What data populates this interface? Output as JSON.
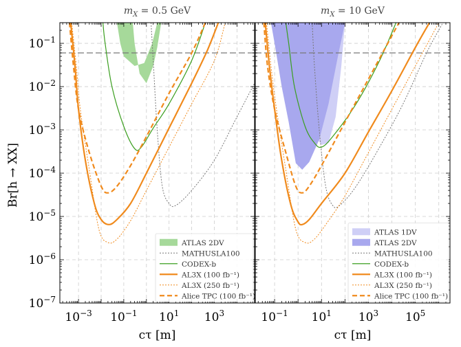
{
  "chart_data": [
    {
      "type": "line",
      "title": "m_X = 0.5 GeV",
      "title_parts": [
        "m",
        "X",
        " = 0.5 GeV"
      ],
      "xlabel": "cτ [m]",
      "ylabel": "Br[h → XX]",
      "x_scale": "log",
      "y_scale": "log",
      "xlim": [
        0.00015,
        60000
      ],
      "ylim": [
        1e-07,
        0.3
      ],
      "x_ticks": [
        {
          "value": 0.001,
          "base": "10",
          "exp": "−3"
        },
        {
          "value": 0.1,
          "base": "10",
          "exp": "−1"
        },
        {
          "value": 10,
          "base": "10",
          "exp": "1"
        },
        {
          "value": 1000,
          "base": "10",
          "exp": "3"
        }
      ],
      "y_ticks": [
        {
          "value": 1e-07,
          "base": "10",
          "exp": "−7"
        },
        {
          "value": 1e-06,
          "base": "10",
          "exp": "−6"
        },
        {
          "value": 1e-05,
          "base": "10",
          "exp": "−5"
        },
        {
          "value": 0.0001,
          "base": "10",
          "exp": "−4"
        },
        {
          "value": 0.001,
          "base": "10",
          "exp": "−3"
        },
        {
          "value": 0.01,
          "base": "10",
          "exp": "−2"
        },
        {
          "value": 0.1,
          "base": "10",
          "exp": "−1"
        }
      ],
      "grid": true,
      "reference_line": {
        "y": 0.06,
        "style": "dashed",
        "color": "#777777"
      },
      "legend_position": "lower-right",
      "bands": [
        {
          "name": "ATLAS 2DV",
          "color": "#a6d99a",
          "lower": [
            [
              0.25,
              0.3
            ],
            [
              0.3,
              0.1
            ],
            [
              0.5,
              0.02
            ],
            [
              1.0,
              0.012
            ],
            [
              2.0,
              0.03
            ],
            [
              3.0,
              0.08
            ],
            [
              4.5,
              0.3
            ]
          ],
          "upper": [
            [
              0.05,
              0.3
            ],
            [
              0.07,
              0.1
            ],
            [
              0.1,
              0.05
            ],
            [
              0.3,
              0.03
            ],
            [
              0.8,
              0.035
            ],
            [
              1.8,
              0.1
            ],
            [
              3.0,
              0.3
            ]
          ]
        }
      ],
      "series": [
        {
          "name": "MATHUSLA100",
          "color": "#777777",
          "style": "dotted",
          "width": 1.0,
          "points": [
            [
              1.6,
              0.3
            ],
            [
              2.0,
              0.04
            ],
            [
              3.0,
              0.001
            ],
            [
              5.0,
              5e-05
            ],
            [
              10,
              2e-05
            ],
            [
              20,
              1.8e-05
            ],
            [
              100,
              4e-05
            ],
            [
              1000,
              0.0002
            ],
            [
              10000,
              0.002
            ],
            [
              60000,
              0.012
            ]
          ]
        },
        {
          "name": "CODEX-b",
          "color": "#3a9e1e",
          "style": "solid",
          "width": 1.2,
          "points": [
            [
              0.012,
              0.3
            ],
            [
              0.015,
              0.1
            ],
            [
              0.03,
              0.01
            ],
            [
              0.1,
              0.0012
            ],
            [
              0.3,
              0.00037
            ],
            [
              0.6,
              0.0004
            ],
            [
              2,
              0.0011
            ],
            [
              10,
              0.004
            ],
            [
              100,
              0.04
            ],
            [
              400,
              0.3
            ]
          ]
        },
        {
          "name": "AL3X (100 fb⁻¹)",
          "color": "#f08a1c",
          "style": "solid",
          "width": 2.2,
          "points": [
            [
              0.00045,
              0.3
            ],
            [
              0.0007,
              0.03
            ],
            [
              0.001,
              0.003
            ],
            [
              0.002,
              0.0002
            ],
            [
              0.005,
              2e-05
            ],
            [
              0.01,
              8.5e-06
            ],
            [
              0.022,
              6.5e-06
            ],
            [
              0.05,
              8.5e-06
            ],
            [
              0.2,
              2e-05
            ],
            [
              1,
              0.0001
            ],
            [
              10,
              0.0011
            ],
            [
              100,
              0.012
            ],
            [
              500,
              0.07
            ],
            [
              1500,
              0.3
            ]
          ]
        },
        {
          "name": "AL3X (250 fb⁻¹)",
          "color": "#f08a1c",
          "style": "dotted",
          "width": 1.0,
          "points": [
            [
              0.0005,
              0.3
            ],
            [
              0.0008,
              0.03
            ],
            [
              0.0012,
              0.003
            ],
            [
              0.003,
              0.00012
            ],
            [
              0.008,
              5e-06
            ],
            [
              0.02,
              2.5e-06
            ],
            [
              0.05,
              3e-06
            ],
            [
              0.2,
              8e-06
            ],
            [
              1,
              4e-05
            ],
            [
              10,
              0.0004
            ],
            [
              100,
              0.004
            ],
            [
              1000,
              0.04
            ],
            [
              3000,
              0.3
            ]
          ]
        },
        {
          "name": "Alice TPC (100 fb⁻¹)",
          "color": "#f08a1c",
          "style": "dashed",
          "width": 2.2,
          "points": [
            [
              0.0004,
              0.3
            ],
            [
              0.0006,
              0.03
            ],
            [
              0.001,
              0.003
            ],
            [
              0.003,
              0.0003
            ],
            [
              0.01,
              5e-05
            ],
            [
              0.02,
              3.5e-05
            ],
            [
              0.05,
              5e-05
            ],
            [
              0.2,
              0.00015
            ],
            [
              1,
              0.0007
            ],
            [
              10,
              0.007
            ],
            [
              100,
              0.06
            ],
            [
              400,
              0.3
            ]
          ]
        }
      ],
      "legend": [
        {
          "label": "ATLAS 2DV",
          "kind": "band",
          "color": "#a6d99a"
        },
        {
          "label": "MATHUSLA100",
          "kind": "line",
          "color": "#777777",
          "style": "dotted",
          "width": 1.0
        },
        {
          "label": "CODEX-b",
          "kind": "line",
          "color": "#3a9e1e",
          "style": "solid",
          "width": 1.2
        },
        {
          "label": "AL3X (100 fb⁻¹)",
          "kind": "line",
          "color": "#f08a1c",
          "style": "solid",
          "width": 2.2
        },
        {
          "label": "AL3X (250 fb⁻¹)",
          "kind": "line",
          "color": "#f08a1c",
          "style": "dotted",
          "width": 1.0
        },
        {
          "label": "Alice TPC (100 fb⁻¹)",
          "kind": "line",
          "color": "#f08a1c",
          "style": "dashed",
          "width": 2.2
        }
      ]
    },
    {
      "type": "line",
      "title": "m_X = 10 GeV",
      "title_parts": [
        "m",
        "X",
        " = 10 GeV"
      ],
      "xlabel": "cτ [m]",
      "ylabel": "",
      "x_scale": "log",
      "y_scale": "log",
      "xlim": [
        0.015,
        3000000
      ],
      "ylim": [
        1e-07,
        0.3
      ],
      "x_ticks": [
        {
          "value": 0.1,
          "base": "10",
          "exp": "−1"
        },
        {
          "value": 10,
          "base": "10",
          "exp": "1"
        },
        {
          "value": 1000,
          "base": "10",
          "exp": "3"
        },
        {
          "value": 100000,
          "base": "10",
          "exp": "5"
        }
      ],
      "y_ticks": [],
      "grid": true,
      "reference_line": {
        "y": 0.06,
        "style": "dashed",
        "color": "#777777"
      },
      "legend_position": "lower-right",
      "bands": [
        {
          "name": "ATLAS 1DV",
          "color": "#cfcff6",
          "lower": [
            [
              0.45,
              0.3
            ],
            [
              0.6,
              0.1
            ],
            [
              1.0,
              0.02
            ],
            [
              2,
              0.003
            ],
            [
              4,
              0.0009
            ],
            [
              10,
              0.00045
            ],
            [
              20,
              0.0005
            ],
            [
              40,
              0.002
            ],
            [
              70,
              0.03
            ],
            [
              100,
              0.3
            ]
          ]
        },
        {
          "name": "ATLAS 2DV",
          "color": "#a8a8ee",
          "lower": [
            [
              0.07,
              0.3
            ],
            [
              0.1,
              0.1
            ],
            [
              0.2,
              0.01
            ],
            [
              0.4,
              0.0015
            ],
            [
              0.8,
              0.00017
            ],
            [
              1.5,
              0.00012
            ],
            [
              3,
              0.00018
            ],
            [
              8,
              0.0006
            ],
            [
              20,
              0.004
            ],
            [
              50,
              0.05
            ],
            [
              100,
              0.3
            ]
          ]
        }
      ],
      "series": [
        {
          "name": "MATHUSLA100",
          "color": "#777777",
          "style": "dotted",
          "width": 1.0,
          "points": [
            [
              4,
              0.3
            ],
            [
              5,
              0.03
            ],
            [
              8,
              0.001
            ],
            [
              15,
              5e-05
            ],
            [
              30,
              1.8e-05
            ],
            [
              60,
              1.8e-05
            ],
            [
              300,
              5e-05
            ],
            [
              3000,
              0.0004
            ],
            [
              30000,
              0.004
            ],
            [
              300000,
              0.06
            ],
            [
              1500000,
              0.3
            ]
          ]
        },
        {
          "name": "CODEX-b",
          "color": "#3a9e1e",
          "style": "solid",
          "width": 1.2,
          "points": [
            [
              0.3,
              0.3
            ],
            [
              0.4,
              0.1
            ],
            [
              0.7,
              0.01
            ],
            [
              2,
              0.0012
            ],
            [
              5,
              0.0005
            ],
            [
              10,
              0.0004
            ],
            [
              30,
              0.0007
            ],
            [
              300,
              0.004
            ],
            [
              3000,
              0.04
            ],
            [
              15000,
              0.3
            ]
          ]
        },
        {
          "name": "AL3X (100 fb⁻¹)",
          "color": "#f08a1c",
          "style": "solid",
          "width": 2.2,
          "points": [
            [
              0.04,
              0.3
            ],
            [
              0.06,
              0.03
            ],
            [
              0.1,
              0.003
            ],
            [
              0.2,
              0.0002
            ],
            [
              0.5,
              1.8e-05
            ],
            [
              1.0,
              7.5e-06
            ],
            [
              1.5,
              6.5e-06
            ],
            [
              3,
              8.5e-06
            ],
            [
              10,
              2e-05
            ],
            [
              100,
              0.0001
            ],
            [
              1000,
              0.0009
            ],
            [
              10000,
              0.008
            ],
            [
              100000,
              0.08
            ],
            [
              400000,
              0.3
            ]
          ]
        },
        {
          "name": "AL3X (250 fb⁻¹)",
          "color": "#f08a1c",
          "style": "dotted",
          "width": 1.0,
          "points": [
            [
              0.045,
              0.3
            ],
            [
              0.07,
              0.03
            ],
            [
              0.12,
              0.003
            ],
            [
              0.3,
              0.00012
            ],
            [
              0.8,
              5e-06
            ],
            [
              2,
              2.5e-06
            ],
            [
              5,
              3e-06
            ],
            [
              20,
              8e-06
            ],
            [
              100,
              3e-05
            ],
            [
              1000,
              0.0003
            ],
            [
              10000,
              0.003
            ],
            [
              100000,
              0.03
            ],
            [
              1000000,
              0.3
            ]
          ]
        },
        {
          "name": "Alice TPC (100 fb⁻¹)",
          "color": "#f08a1c",
          "style": "dashed",
          "width": 2.2,
          "points": [
            [
              0.035,
              0.3
            ],
            [
              0.05,
              0.03
            ],
            [
              0.1,
              0.003
            ],
            [
              0.3,
              0.0003
            ],
            [
              0.8,
              5e-05
            ],
            [
              1.5,
              3.5e-05
            ],
            [
              3,
              5e-05
            ],
            [
              10,
              0.00015
            ],
            [
              100,
              0.0015
            ],
            [
              1000,
              0.015
            ],
            [
              10000,
              0.15
            ],
            [
              20000,
              0.3
            ]
          ]
        }
      ],
      "legend": [
        {
          "label": "ATLAS 1DV",
          "kind": "band",
          "color": "#cfcff6"
        },
        {
          "label": "ATLAS 2DV",
          "kind": "band",
          "color": "#a8a8ee"
        },
        {
          "label": "MATHUSLA100",
          "kind": "line",
          "color": "#777777",
          "style": "dotted",
          "width": 1.0
        },
        {
          "label": "CODEX-b",
          "kind": "line",
          "color": "#3a9e1e",
          "style": "solid",
          "width": 1.2
        },
        {
          "label": "AL3X (100 fb⁻¹)",
          "kind": "line",
          "color": "#f08a1c",
          "style": "solid",
          "width": 2.2
        },
        {
          "label": "AL3X (250 fb⁻¹)",
          "kind": "line",
          "color": "#f08a1c",
          "style": "dotted",
          "width": 1.0
        },
        {
          "label": "Alice TPC (100 fb⁻¹)",
          "kind": "line",
          "color": "#f08a1c",
          "style": "dashed",
          "width": 2.2
        }
      ]
    }
  ]
}
